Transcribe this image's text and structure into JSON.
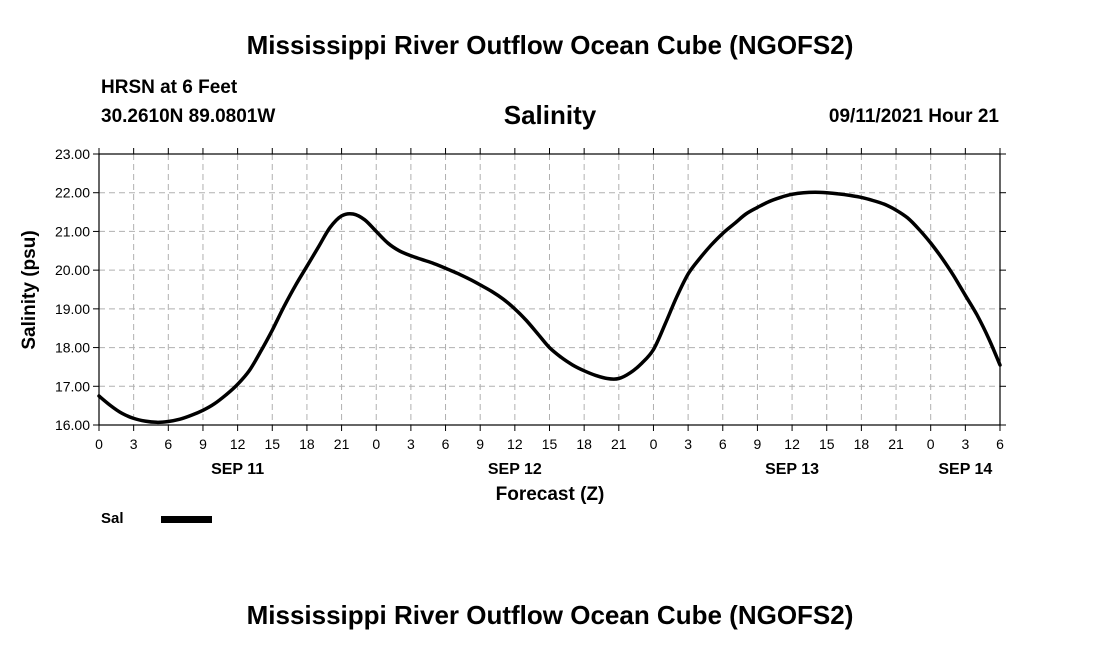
{
  "header": {
    "title": "Mississippi River Outflow Ocean Cube (NGOFS2)",
    "station": "HRSN at 6 Feet",
    "coords": "30.2610N  89.0801W",
    "datetime": "09/11/2021 Hour 21",
    "footer_title": "Mississippi River Outflow Ocean Cube (NGOFS2)"
  },
  "chart_data": {
    "type": "line",
    "title": "Salinity",
    "xlabel": "Forecast (Z)",
    "ylabel": "Salinity (psu)",
    "x_unit": "hours from SEP 11 00Z",
    "xlim": [
      0,
      78
    ],
    "ylim": [
      16.0,
      23.0
    ],
    "y_ticks": [
      "16.00",
      "17.00",
      "18.00",
      "19.00",
      "20.00",
      "21.00",
      "22.00",
      "23.00"
    ],
    "x_ticks": [
      {
        "x": 0,
        "label": "0"
      },
      {
        "x": 3,
        "label": "3"
      },
      {
        "x": 6,
        "label": "6"
      },
      {
        "x": 9,
        "label": "9"
      },
      {
        "x": 12,
        "label": "12"
      },
      {
        "x": 15,
        "label": "15"
      },
      {
        "x": 18,
        "label": "18"
      },
      {
        "x": 21,
        "label": "21"
      },
      {
        "x": 24,
        "label": "0"
      },
      {
        "x": 27,
        "label": "3"
      },
      {
        "x": 30,
        "label": "6"
      },
      {
        "x": 33,
        "label": "9"
      },
      {
        "x": 36,
        "label": "12"
      },
      {
        "x": 39,
        "label": "15"
      },
      {
        "x": 42,
        "label": "18"
      },
      {
        "x": 45,
        "label": "21"
      },
      {
        "x": 48,
        "label": "0"
      },
      {
        "x": 51,
        "label": "3"
      },
      {
        "x": 54,
        "label": "6"
      },
      {
        "x": 57,
        "label": "9"
      },
      {
        "x": 60,
        "label": "12"
      },
      {
        "x": 63,
        "label": "15"
      },
      {
        "x": 66,
        "label": "18"
      },
      {
        "x": 69,
        "label": "21"
      },
      {
        "x": 72,
        "label": "0"
      },
      {
        "x": 75,
        "label": "3"
      },
      {
        "x": 78,
        "label": "6"
      }
    ],
    "date_labels": [
      {
        "x": 12,
        "label": "SEP 11"
      },
      {
        "x": 36,
        "label": "SEP 12"
      },
      {
        "x": 60,
        "label": "SEP 13"
      },
      {
        "x": 75,
        "label": "SEP 14"
      }
    ],
    "grid": true,
    "legend_position": "bottom-left",
    "series": [
      {
        "name": "Sal",
        "color": "#000000",
        "x": [
          0,
          1,
          2,
          3,
          4,
          5,
          6,
          7,
          8,
          9,
          10,
          11,
          12,
          13,
          14,
          15,
          16,
          17,
          18,
          19,
          20,
          21,
          22,
          23,
          24,
          25,
          26,
          27,
          28,
          29,
          30,
          31,
          32,
          33,
          34,
          35,
          36,
          37,
          38,
          39,
          40,
          41,
          42,
          43,
          44,
          45,
          46,
          47,
          48,
          49,
          50,
          51,
          52,
          53,
          54,
          55,
          56,
          57,
          58,
          59,
          60,
          61,
          62,
          63,
          64,
          65,
          66,
          67,
          68,
          69,
          70,
          71,
          72,
          73,
          74,
          75,
          76,
          77,
          78
        ],
        "values": [
          16.75,
          16.5,
          16.3,
          16.17,
          16.1,
          16.07,
          16.09,
          16.15,
          16.25,
          16.38,
          16.55,
          16.78,
          17.05,
          17.4,
          17.9,
          18.45,
          19.05,
          19.6,
          20.1,
          20.6,
          21.1,
          21.4,
          21.45,
          21.3,
          21.0,
          20.7,
          20.5,
          20.37,
          20.27,
          20.17,
          20.05,
          19.92,
          19.78,
          19.62,
          19.45,
          19.25,
          19.0,
          18.7,
          18.35,
          18.0,
          17.75,
          17.55,
          17.4,
          17.28,
          17.2,
          17.2,
          17.35,
          17.6,
          17.95,
          18.6,
          19.3,
          19.9,
          20.3,
          20.65,
          20.95,
          21.2,
          21.45,
          21.62,
          21.77,
          21.88,
          21.96,
          22.0,
          22.01,
          22.0,
          21.97,
          21.93,
          21.88,
          21.8,
          21.7,
          21.55,
          21.35,
          21.05,
          20.7,
          20.3,
          19.85,
          19.35,
          18.85,
          18.25,
          17.55
        ]
      }
    ]
  }
}
